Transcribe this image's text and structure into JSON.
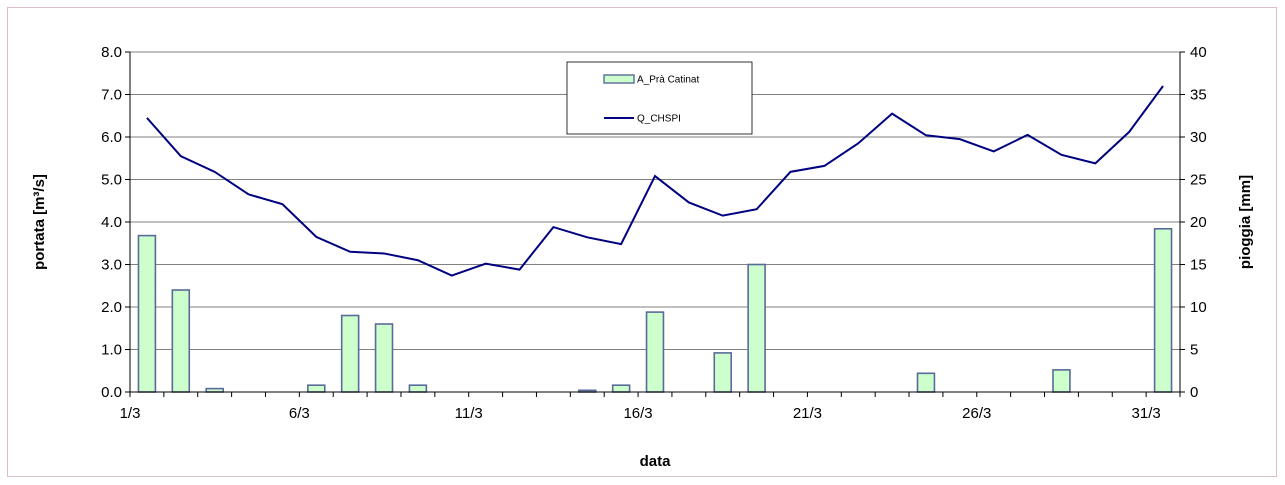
{
  "chart_data": {
    "type": "bar+line",
    "title": "",
    "xlabel": "data",
    "ylabel_left": "portata [m³/s]",
    "ylabel_right": "pioggia [mm]",
    "ylim_left": [
      0,
      8
    ],
    "ylim_right": [
      0,
      40
    ],
    "yticks_left": [
      "0.0",
      "1.0",
      "2.0",
      "3.0",
      "4.0",
      "5.0",
      "6.0",
      "7.0",
      "8.0"
    ],
    "yticks_right": [
      "0",
      "5",
      "10",
      "15",
      "20",
      "25",
      "30",
      "35",
      "40"
    ],
    "xtick_labels": [
      "1/3",
      "6/3",
      "11/3",
      "16/3",
      "21/3",
      "26/3",
      "31/3"
    ],
    "grid": "horizontal",
    "legend_position": "top-center",
    "categories": [
      "1/3",
      "2/3",
      "3/3",
      "4/3",
      "5/3",
      "6/3",
      "7/3",
      "8/3",
      "9/3",
      "10/3",
      "11/3",
      "12/3",
      "13/3",
      "14/3",
      "15/3",
      "16/3",
      "17/3",
      "18/3",
      "19/3",
      "20/3",
      "21/3",
      "22/3",
      "23/3",
      "24/3",
      "25/3",
      "26/3",
      "27/3",
      "28/3",
      "29/3",
      "30/3",
      "31/3"
    ],
    "series": [
      {
        "name": "A_Prà Catinat",
        "type": "bar",
        "axis": "right",
        "color": "#ccffcc",
        "edge_color": "#5a6a9a",
        "values": [
          18.4,
          12.0,
          0.4,
          0,
          0,
          0.8,
          9.0,
          8.0,
          0.8,
          0,
          0,
          0,
          0,
          0.2,
          0.8,
          9.4,
          0,
          4.6,
          15.0,
          0,
          0,
          0,
          0,
          2.2,
          0,
          0,
          0,
          2.6,
          0,
          0,
          19.2
        ]
      },
      {
        "name": "Q_CHSPI",
        "type": "line",
        "axis": "left",
        "color": "#000080",
        "values": [
          6.45,
          5.55,
          5.18,
          4.65,
          4.42,
          3.65,
          3.3,
          3.26,
          3.1,
          2.74,
          3.02,
          2.88,
          3.88,
          3.64,
          3.48,
          5.08,
          4.46,
          4.15,
          4.3,
          5.18,
          5.32,
          5.85,
          6.55,
          6.04,
          5.95,
          5.66,
          6.05,
          5.58,
          5.38,
          6.12,
          7.2
        ]
      }
    ]
  },
  "legend": {
    "bar_label": "A_Prà Catinat",
    "line_label": "Q_CHSPI"
  }
}
